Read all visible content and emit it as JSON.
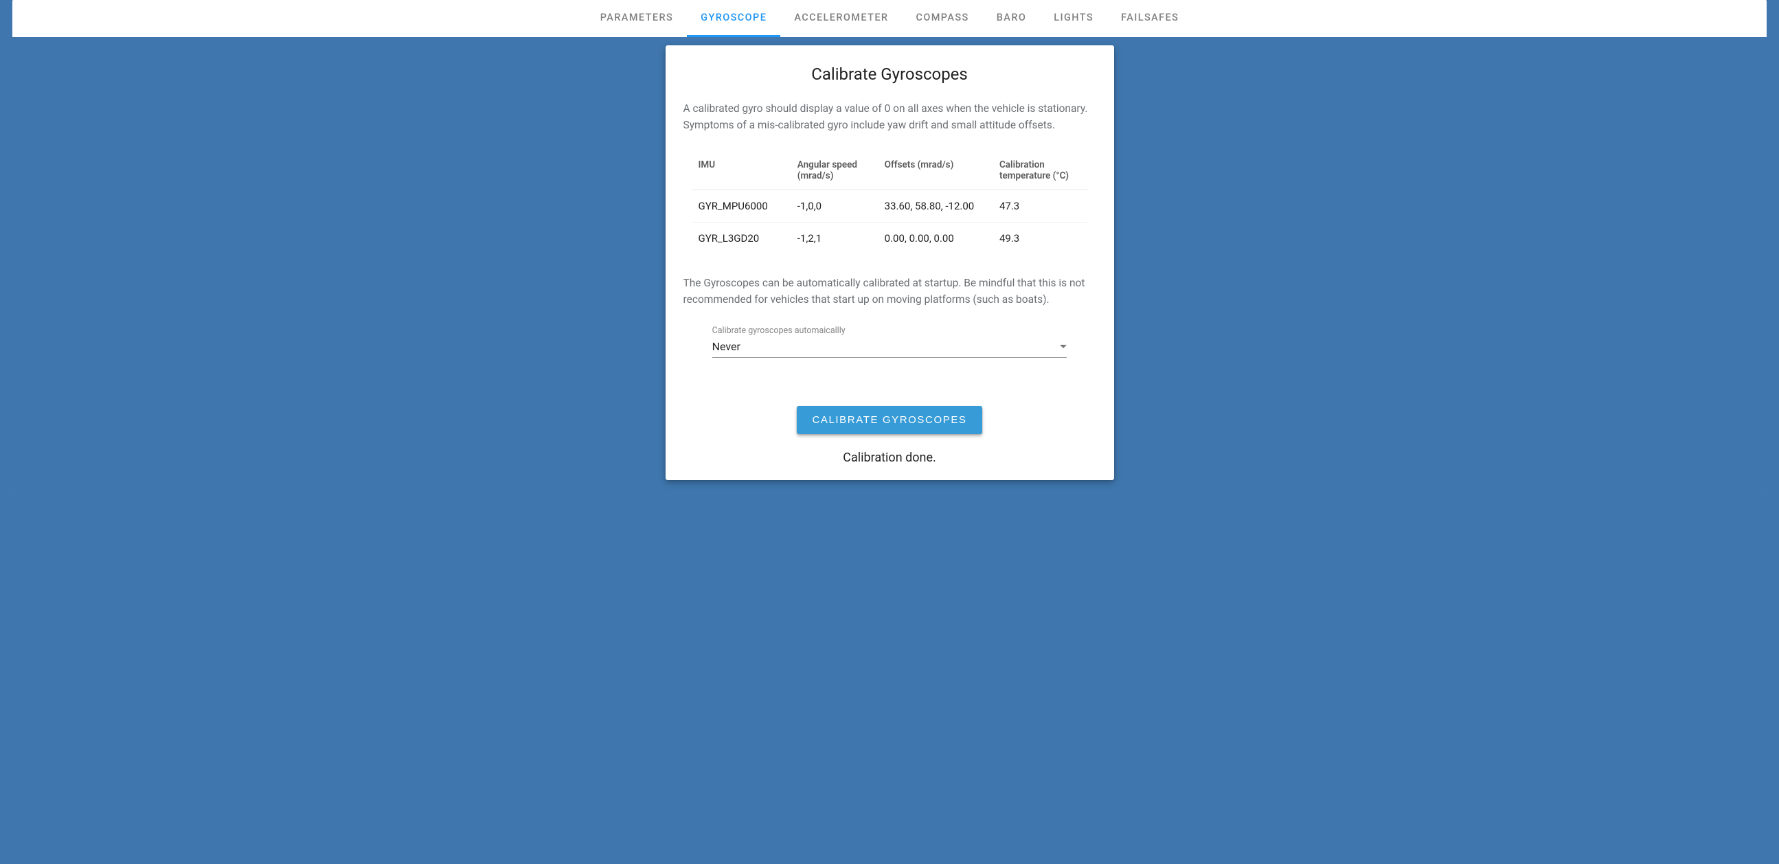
{
  "colors": {
    "page_bg": "#3e76ad",
    "card_bg": "#ffffff",
    "tab_inactive": "#808080",
    "tab_active": "#2196f3",
    "text_muted": "#6b6f73",
    "text_body": "#222222",
    "button_bg": "#369bd7",
    "button_fg": "#ffffff",
    "divider": "#e4e4e4"
  },
  "tabs": {
    "items": [
      {
        "label": "PARAMETERS",
        "active": false
      },
      {
        "label": "GYROSCOPE",
        "active": true
      },
      {
        "label": "ACCELEROMETER",
        "active": false
      },
      {
        "label": "COMPASS",
        "active": false
      },
      {
        "label": "BARO",
        "active": false
      },
      {
        "label": "LIGHTS",
        "active": false
      },
      {
        "label": "FAILSAFES",
        "active": false
      }
    ]
  },
  "card": {
    "title": "Calibrate Gyroscopes",
    "description": "A calibrated gyro should display a value of 0 on all axes when the vehicle is stationary. Symptoms of a mis-calibrated gyro include yaw drift and small attitude offsets.",
    "table": {
      "columns": [
        "IMU",
        "Angular speed (mrad/s)",
        "Offsets (mrad/s)",
        "Calibration temperature (°C)"
      ],
      "col_widths": [
        "25%",
        "22%",
        "29%",
        "24%"
      ],
      "rows": [
        [
          "GYR_MPU6000",
          "-1,0,0",
          "33.60, 58.80, -12.00",
          "47.3"
        ],
        [
          "GYR_L3GD20",
          "-1,2,1",
          "0.00, 0.00, 0.00",
          "49.3"
        ]
      ]
    },
    "auto_note": "The Gyroscopes can be automatically calibrated at startup. Be mindful that this is not recommended for vehicles that start up on moving platforms (such as boats).",
    "select": {
      "label": "Calibrate gyroscopes automaicallly",
      "value": "Never"
    },
    "button_label": "CALIBRATE GYROSCOPES",
    "status": "Calibration done."
  }
}
